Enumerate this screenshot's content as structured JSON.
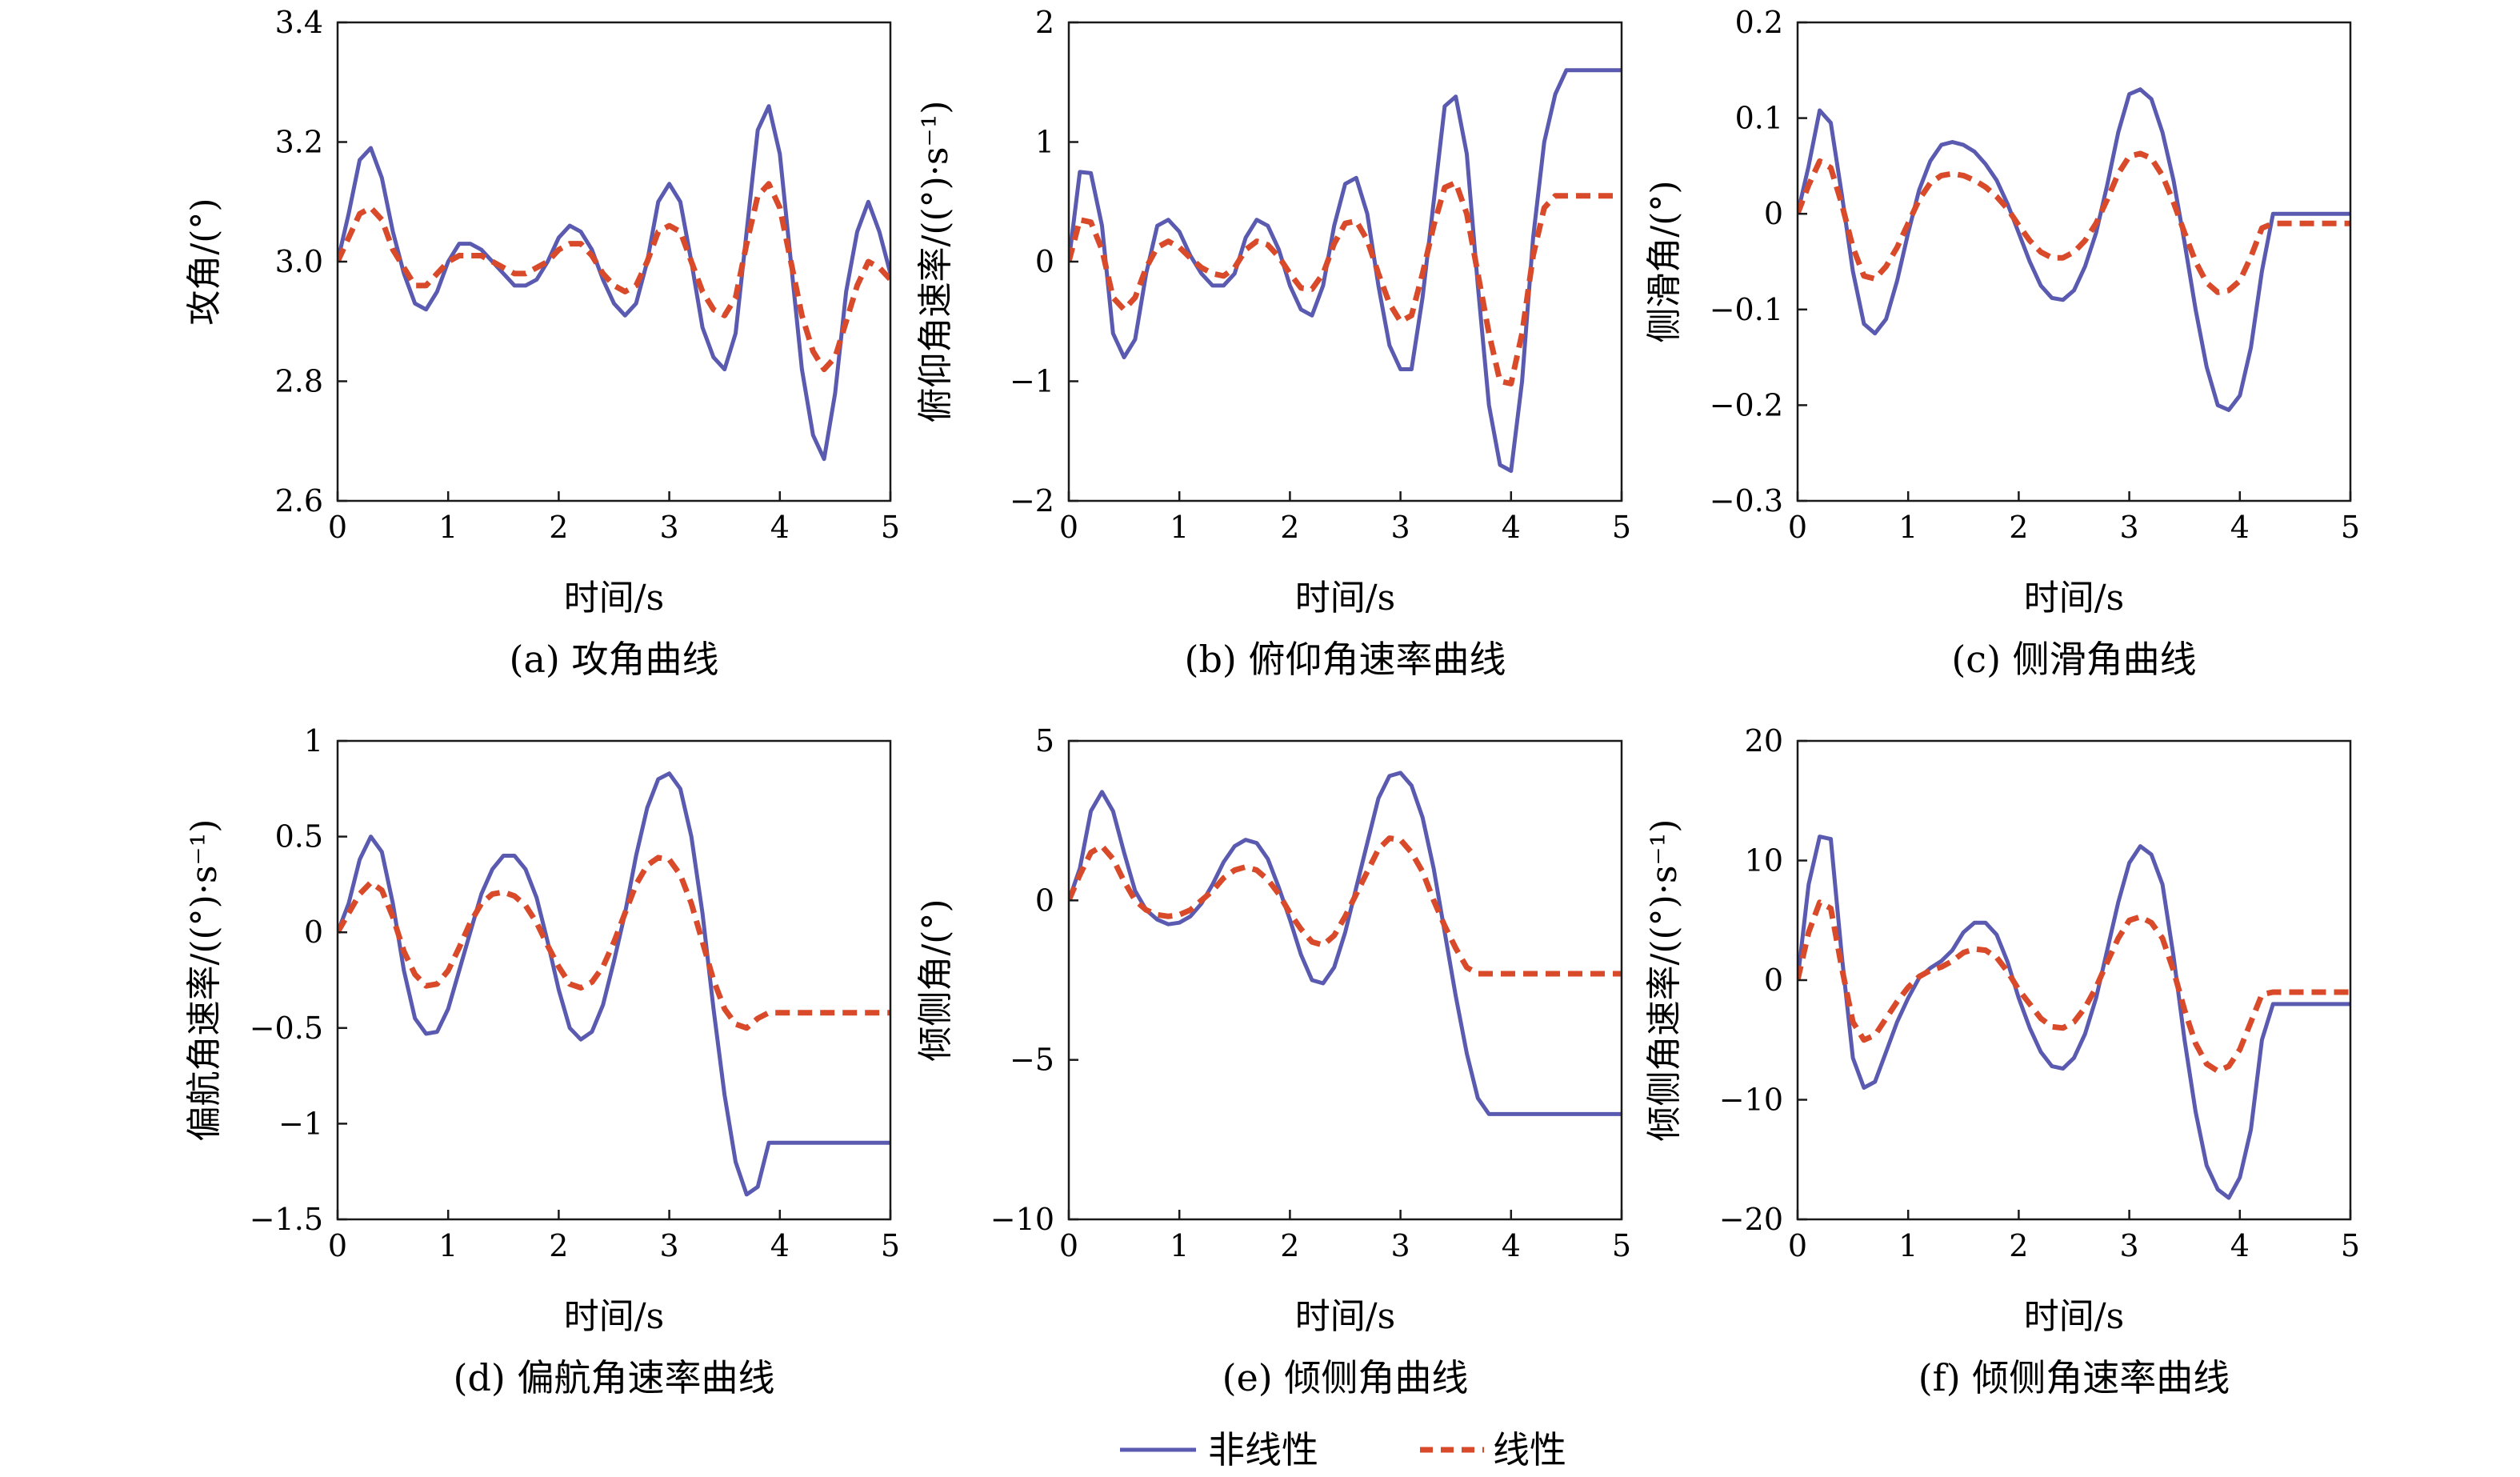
{
  "legend": [
    {
      "label": "非线性",
      "color": "#5a5ab0",
      "style": "solid"
    },
    {
      "label": "线性",
      "color": "#d94a2a",
      "style": "dashed"
    }
  ],
  "chart_data": [
    {
      "type": "line",
      "id": "a",
      "caption": "(a) 攻角曲线",
      "xlabel": "时间/s",
      "ylabel": "攻角/(°)",
      "xlim": [
        0,
        5
      ],
      "ylim": [
        2.6,
        3.4
      ],
      "xticks": [
        "0",
        "1",
        "2",
        "3",
        "4",
        "5"
      ],
      "yticks": [
        "2.6",
        "2.8",
        "3.0",
        "3.2",
        "3.4"
      ],
      "x": [
        0,
        0.1,
        0.2,
        0.3,
        0.4,
        0.5,
        0.6,
        0.7,
        0.8,
        0.9,
        1.0,
        1.1,
        1.2,
        1.3,
        1.4,
        1.5,
        1.6,
        1.7,
        1.8,
        1.9,
        2.0,
        2.1,
        2.2,
        2.3,
        2.4,
        2.5,
        2.6,
        2.7,
        2.8,
        2.9,
        3.0,
        3.1,
        3.2,
        3.3,
        3.4,
        3.5,
        3.6,
        3.7,
        3.8,
        3.9,
        4.0,
        4.1,
        4.2,
        4.3,
        4.4,
        4.5,
        4.6,
        4.7,
        4.8,
        4.9,
        5.0
      ],
      "series": [
        {
          "name": "非线性",
          "values": [
            3.0,
            3.08,
            3.17,
            3.19,
            3.14,
            3.05,
            2.98,
            2.93,
            2.92,
            2.95,
            3.0,
            3.03,
            3.03,
            3.02,
            3.0,
            2.98,
            2.96,
            2.96,
            2.97,
            3.0,
            3.04,
            3.06,
            3.05,
            3.02,
            2.97,
            2.93,
            2.91,
            2.93,
            3.0,
            3.1,
            3.13,
            3.1,
            3.0,
            2.89,
            2.84,
            2.82,
            2.88,
            3.05,
            3.22,
            3.26,
            3.18,
            3.0,
            2.82,
            2.71,
            2.67,
            2.78,
            2.95,
            3.05,
            3.1,
            3.05,
            2.98
          ]
        },
        {
          "name": "线性",
          "values": [
            3.0,
            3.04,
            3.08,
            3.09,
            3.07,
            3.02,
            2.99,
            2.96,
            2.96,
            2.98,
            3.0,
            3.01,
            3.01,
            3.01,
            3.0,
            2.99,
            2.98,
            2.98,
            2.99,
            3.0,
            3.02,
            3.03,
            3.03,
            3.01,
            2.98,
            2.96,
            2.95,
            2.96,
            3.0,
            3.05,
            3.06,
            3.05,
            3.0,
            2.95,
            2.92,
            2.91,
            2.94,
            3.03,
            3.11,
            3.13,
            3.09,
            3.0,
            2.91,
            2.85,
            2.82,
            2.84,
            2.9,
            2.96,
            3.0,
            2.99,
            2.97
          ]
        }
      ]
    },
    {
      "type": "line",
      "id": "b",
      "caption": "(b) 俯仰角速率曲线",
      "xlabel": "时间/s",
      "ylabel": "俯仰角速率/((°)·s⁻¹)",
      "xlim": [
        0,
        5
      ],
      "ylim": [
        -2,
        2
      ],
      "xticks": [
        "0",
        "1",
        "2",
        "3",
        "4",
        "5"
      ],
      "yticks": [
        "−2",
        "−1",
        "0",
        "1",
        "2"
      ],
      "x": [
        0,
        0.1,
        0.2,
        0.3,
        0.4,
        0.5,
        0.6,
        0.7,
        0.8,
        0.9,
        1.0,
        1.1,
        1.2,
        1.3,
        1.4,
        1.5,
        1.6,
        1.7,
        1.8,
        1.9,
        2.0,
        2.1,
        2.2,
        2.3,
        2.4,
        2.5,
        2.6,
        2.7,
        2.8,
        2.9,
        3.0,
        3.1,
        3.2,
        3.3,
        3.4,
        3.5,
        3.6,
        3.7,
        3.8,
        3.9,
        4.0,
        4.1,
        4.2,
        4.3,
        4.4,
        4.5,
        4.6,
        4.7,
        4.8,
        4.9,
        5.0
      ],
      "series": [
        {
          "name": "非线性",
          "values": [
            0.0,
            0.75,
            0.74,
            0.3,
            -0.6,
            -0.8,
            -0.65,
            -0.1,
            0.3,
            0.35,
            0.25,
            0.05,
            -0.1,
            -0.2,
            -0.2,
            -0.1,
            0.2,
            0.35,
            0.3,
            0.1,
            -0.2,
            -0.4,
            -0.45,
            -0.2,
            0.3,
            0.65,
            0.7,
            0.4,
            -0.2,
            -0.7,
            -0.9,
            -0.9,
            -0.3,
            0.5,
            1.3,
            1.38,
            0.9,
            -0.2,
            -1.2,
            -1.7,
            -1.75,
            -1.0,
            0.2,
            1.0,
            1.4,
            1.6,
            1.6,
            1.6,
            1.6,
            1.6,
            1.6
          ]
        },
        {
          "name": "线性",
          "values": [
            0.0,
            0.35,
            0.33,
            0.1,
            -0.3,
            -0.4,
            -0.3,
            -0.05,
            0.12,
            0.17,
            0.12,
            0.03,
            -0.05,
            -0.1,
            -0.12,
            -0.05,
            0.1,
            0.17,
            0.14,
            0.04,
            -0.1,
            -0.22,
            -0.23,
            -0.1,
            0.15,
            0.32,
            0.34,
            0.18,
            -0.1,
            -0.35,
            -0.5,
            -0.45,
            -0.1,
            0.3,
            0.62,
            0.66,
            0.4,
            -0.1,
            -0.6,
            -1.0,
            -1.02,
            -0.6,
            0.05,
            0.45,
            0.55,
            0.55,
            0.55,
            0.55,
            0.55,
            0.55,
            0.55
          ]
        }
      ]
    },
    {
      "type": "line",
      "id": "c",
      "caption": "(c) 侧滑角曲线",
      "xlabel": "时间/s",
      "ylabel": "侧滑角/(°)",
      "xlim": [
        0,
        5
      ],
      "ylim": [
        -0.3,
        0.2
      ],
      "xticks": [
        "0",
        "1",
        "2",
        "3",
        "4",
        "5"
      ],
      "yticks": [
        "−0.3",
        "−0.2",
        "−0.1",
        "0",
        "0.1",
        "0.2"
      ],
      "x": [
        0,
        0.1,
        0.2,
        0.3,
        0.4,
        0.5,
        0.6,
        0.7,
        0.8,
        0.9,
        1.0,
        1.1,
        1.2,
        1.3,
        1.4,
        1.5,
        1.6,
        1.7,
        1.8,
        1.9,
        2.0,
        2.1,
        2.2,
        2.3,
        2.4,
        2.5,
        2.6,
        2.7,
        2.8,
        2.9,
        3.0,
        3.1,
        3.2,
        3.3,
        3.4,
        3.5,
        3.6,
        3.7,
        3.8,
        3.9,
        4.0,
        4.1,
        4.2,
        4.3,
        4.4,
        4.5,
        4.6,
        4.7,
        4.8,
        4.9,
        5.0
      ],
      "series": [
        {
          "name": "非线性",
          "values": [
            0.0,
            0.05,
            0.108,
            0.095,
            0.02,
            -0.06,
            -0.115,
            -0.125,
            -0.11,
            -0.07,
            -0.02,
            0.025,
            0.055,
            0.072,
            0.075,
            0.072,
            0.065,
            0.052,
            0.035,
            0.01,
            -0.02,
            -0.05,
            -0.075,
            -0.088,
            -0.09,
            -0.08,
            -0.055,
            -0.02,
            0.03,
            0.085,
            0.125,
            0.13,
            0.12,
            0.085,
            0.035,
            -0.03,
            -0.1,
            -0.16,
            -0.2,
            -0.205,
            -0.19,
            -0.14,
            -0.06,
            0.0,
            0.0,
            0.0,
            0.0,
            0.0,
            0.0,
            0.0,
            0.0
          ]
        },
        {
          "name": "线性",
          "values": [
            0.0,
            0.03,
            0.055,
            0.048,
            0.01,
            -0.035,
            -0.065,
            -0.068,
            -0.055,
            -0.035,
            -0.01,
            0.015,
            0.032,
            0.04,
            0.042,
            0.04,
            0.035,
            0.028,
            0.018,
            0.005,
            -0.012,
            -0.028,
            -0.04,
            -0.046,
            -0.046,
            -0.04,
            -0.028,
            -0.01,
            0.015,
            0.042,
            0.06,
            0.063,
            0.058,
            0.04,
            0.012,
            -0.02,
            -0.05,
            -0.072,
            -0.082,
            -0.08,
            -0.07,
            -0.045,
            -0.015,
            -0.01,
            -0.01,
            -0.01,
            -0.01,
            -0.01,
            -0.01,
            -0.01,
            -0.01
          ]
        }
      ]
    },
    {
      "type": "line",
      "id": "d",
      "caption": "(d) 偏航角速率曲线",
      "xlabel": "时间/s",
      "ylabel": "偏航角速率/((°)·s⁻¹)",
      "xlim": [
        0,
        5
      ],
      "ylim": [
        -1.5,
        1
      ],
      "xticks": [
        "0",
        "1",
        "2",
        "3",
        "4",
        "5"
      ],
      "yticks": [
        "−1.5",
        "−1",
        "−0.5",
        "0",
        "0.5",
        "1"
      ],
      "x": [
        0,
        0.1,
        0.2,
        0.3,
        0.4,
        0.5,
        0.6,
        0.7,
        0.8,
        0.9,
        1.0,
        1.1,
        1.2,
        1.3,
        1.4,
        1.5,
        1.6,
        1.7,
        1.8,
        1.9,
        2.0,
        2.1,
        2.2,
        2.3,
        2.4,
        2.5,
        2.6,
        2.7,
        2.8,
        2.9,
        3.0,
        3.1,
        3.2,
        3.3,
        3.4,
        3.5,
        3.6,
        3.7,
        3.8,
        3.9,
        4.0,
        4.1,
        4.2,
        4.3,
        4.4,
        4.5,
        4.6,
        4.7,
        4.8,
        4.9,
        5.0
      ],
      "series": [
        {
          "name": "非线性",
          "values": [
            0.0,
            0.15,
            0.38,
            0.5,
            0.42,
            0.15,
            -0.2,
            -0.45,
            -0.53,
            -0.52,
            -0.4,
            -0.2,
            0.0,
            0.2,
            0.33,
            0.4,
            0.4,
            0.33,
            0.18,
            -0.05,
            -0.3,
            -0.5,
            -0.56,
            -0.52,
            -0.38,
            -0.15,
            0.1,
            0.4,
            0.65,
            0.8,
            0.83,
            0.75,
            0.5,
            0.1,
            -0.4,
            -0.85,
            -1.2,
            -1.37,
            -1.33,
            -1.1,
            -1.1,
            -1.1,
            -1.1,
            -1.1,
            -1.1,
            -1.1,
            -1.1,
            -1.1,
            -1.1,
            -1.1,
            -1.1
          ]
        },
        {
          "name": "线性",
          "values": [
            0.0,
            0.1,
            0.2,
            0.26,
            0.22,
            0.08,
            -0.1,
            -0.22,
            -0.28,
            -0.27,
            -0.2,
            -0.08,
            0.05,
            0.15,
            0.2,
            0.21,
            0.19,
            0.14,
            0.05,
            -0.07,
            -0.18,
            -0.27,
            -0.29,
            -0.26,
            -0.18,
            -0.05,
            0.1,
            0.25,
            0.35,
            0.39,
            0.38,
            0.3,
            0.15,
            -0.05,
            -0.25,
            -0.4,
            -0.48,
            -0.5,
            -0.45,
            -0.42,
            -0.42,
            -0.42,
            -0.42,
            -0.42,
            -0.42,
            -0.42,
            -0.42,
            -0.42,
            -0.42,
            -0.42,
            -0.42
          ]
        }
      ]
    },
    {
      "type": "line",
      "id": "e",
      "caption": "(e) 倾侧角曲线",
      "xlabel": "时间/s",
      "ylabel": "倾侧角/(°)",
      "xlim": [
        0,
        5
      ],
      "ylim": [
        -10,
        5
      ],
      "xticks": [
        "0",
        "1",
        "2",
        "3",
        "4",
        "5"
      ],
      "yticks": [
        "−10",
        "−5",
        "0",
        "5"
      ],
      "x": [
        0,
        0.1,
        0.2,
        0.3,
        0.4,
        0.5,
        0.6,
        0.7,
        0.8,
        0.9,
        1.0,
        1.1,
        1.2,
        1.3,
        1.4,
        1.5,
        1.6,
        1.7,
        1.8,
        1.9,
        2.0,
        2.1,
        2.2,
        2.3,
        2.4,
        2.5,
        2.6,
        2.7,
        2.8,
        2.9,
        3.0,
        3.1,
        3.2,
        3.3,
        3.4,
        3.5,
        3.6,
        3.7,
        3.8,
        3.9,
        4.0,
        4.1,
        4.2,
        4.3,
        4.4,
        4.5,
        4.6,
        4.7,
        4.8,
        4.9,
        5.0
      ],
      "series": [
        {
          "name": "非线性",
          "values": [
            0.0,
            1.0,
            2.8,
            3.4,
            2.8,
            1.5,
            0.3,
            -0.3,
            -0.6,
            -0.75,
            -0.7,
            -0.5,
            -0.1,
            0.5,
            1.2,
            1.7,
            1.9,
            1.8,
            1.3,
            0.4,
            -0.6,
            -1.7,
            -2.5,
            -2.6,
            -2.1,
            -1.0,
            0.4,
            1.8,
            3.2,
            3.9,
            4.0,
            3.6,
            2.6,
            1.0,
            -1.0,
            -3.0,
            -4.8,
            -6.2,
            -6.7,
            -6.7,
            -6.7,
            -6.7,
            -6.7,
            -6.7,
            -6.7,
            -6.7,
            -6.7,
            -6.7,
            -6.7,
            -6.7,
            -6.7
          ]
        },
        {
          "name": "线性",
          "values": [
            0.0,
            0.8,
            1.5,
            1.7,
            1.3,
            0.6,
            0.0,
            -0.3,
            -0.45,
            -0.5,
            -0.45,
            -0.3,
            0.0,
            0.3,
            0.7,
            0.95,
            1.05,
            0.95,
            0.65,
            0.2,
            -0.4,
            -0.9,
            -1.3,
            -1.4,
            -1.1,
            -0.5,
            0.2,
            0.9,
            1.6,
            1.95,
            1.9,
            1.5,
            0.9,
            0.0,
            -0.8,
            -1.5,
            -2.1,
            -2.3,
            -2.3,
            -2.3,
            -2.3,
            -2.3,
            -2.3,
            -2.3,
            -2.3,
            -2.3,
            -2.3,
            -2.3,
            -2.3,
            -2.3,
            -2.3
          ]
        }
      ]
    },
    {
      "type": "line",
      "id": "f",
      "caption": "(f) 倾侧角速率曲线",
      "xlabel": "时间/s",
      "ylabel": "倾侧角速率/((°)·s⁻¹)",
      "xlim": [
        0,
        5
      ],
      "ylim": [
        -20,
        20
      ],
      "xticks": [
        "0",
        "1",
        "2",
        "3",
        "4",
        "5"
      ],
      "yticks": [
        "−20",
        "−10",
        "0",
        "10",
        "20"
      ],
      "x": [
        0,
        0.1,
        0.2,
        0.3,
        0.4,
        0.5,
        0.6,
        0.7,
        0.8,
        0.9,
        1.0,
        1.1,
        1.2,
        1.3,
        1.4,
        1.5,
        1.6,
        1.7,
        1.8,
        1.9,
        2.0,
        2.1,
        2.2,
        2.3,
        2.4,
        2.5,
        2.6,
        2.7,
        2.8,
        2.9,
        3.0,
        3.1,
        3.2,
        3.3,
        3.4,
        3.5,
        3.6,
        3.7,
        3.8,
        3.9,
        4.0,
        4.1,
        4.2,
        4.3,
        4.4,
        4.5,
        4.6,
        4.7,
        4.8,
        4.9,
        5.0
      ],
      "series": [
        {
          "name": "非线性",
          "values": [
            0.0,
            8.0,
            12.0,
            11.8,
            2.0,
            -6.5,
            -9.0,
            -8.5,
            -6.0,
            -3.5,
            -1.5,
            0.2,
            1.0,
            1.6,
            2.5,
            4.0,
            4.8,
            4.8,
            3.8,
            1.5,
            -1.5,
            -4.0,
            -6.0,
            -7.2,
            -7.4,
            -6.5,
            -4.5,
            -1.5,
            2.5,
            6.5,
            9.8,
            11.2,
            10.5,
            8.0,
            2.0,
            -5.0,
            -11.0,
            -15.5,
            -17.5,
            -18.2,
            -16.5,
            -12.5,
            -5.0,
            -2.0,
            -2.0,
            -2.0,
            -2.0,
            -2.0,
            -2.0,
            -2.0,
            -2.0
          ]
        },
        {
          "name": "线性",
          "values": [
            0.0,
            4.0,
            6.5,
            6.0,
            1.0,
            -3.5,
            -5.0,
            -4.6,
            -3.2,
            -1.8,
            -0.6,
            0.3,
            0.8,
            1.1,
            1.6,
            2.3,
            2.6,
            2.5,
            1.9,
            0.7,
            -0.8,
            -2.0,
            -3.2,
            -3.9,
            -4.0,
            -3.5,
            -2.3,
            -0.6,
            1.5,
            3.5,
            5.0,
            5.3,
            4.8,
            3.5,
            0.8,
            -2.5,
            -5.3,
            -7.0,
            -7.6,
            -7.2,
            -5.8,
            -3.5,
            -1.2,
            -1.0,
            -1.0,
            -1.0,
            -1.0,
            -1.0,
            -1.0,
            -1.0,
            -1.0
          ]
        }
      ]
    }
  ]
}
